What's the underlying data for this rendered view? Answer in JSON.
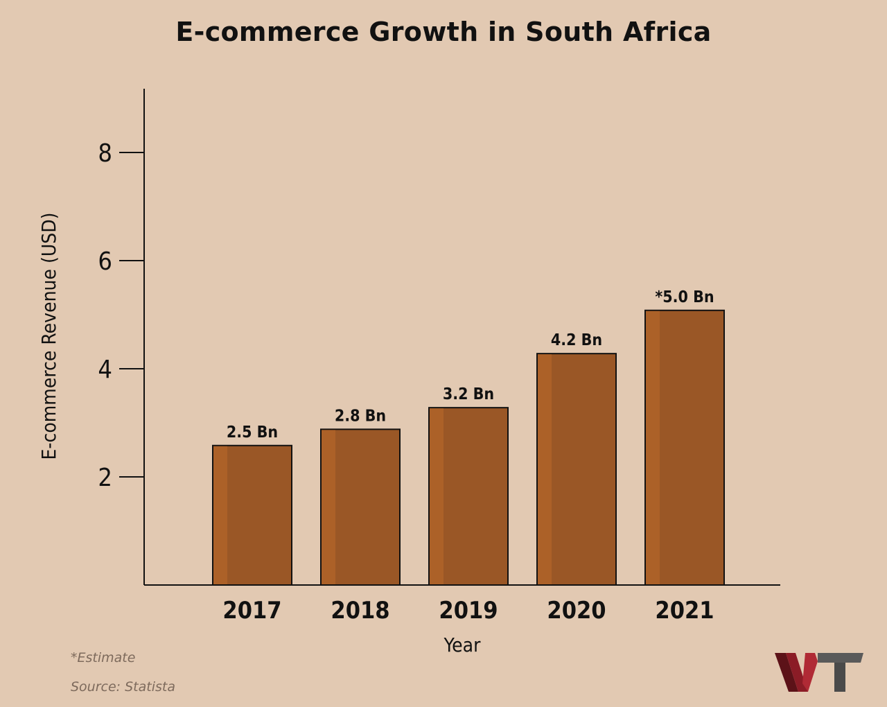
{
  "title": "E-commerce Growth in South Africa",
  "footnote": "*Estimate",
  "source": "Source: Statista",
  "colors": {
    "background": "#e2c9b2",
    "bar": "#9a5726",
    "bar_highlight": "#ac6128",
    "bar_outline": "#111111",
    "axis": "#111111",
    "logo_w": "#8b1c26",
    "logo_t": "#555555"
  },
  "chart_data": {
    "type": "bar",
    "title": "E-commerce Growth in South Africa",
    "xlabel": "Year",
    "ylabel": "E-commerce Revenue (USD)",
    "categories": [
      "2017",
      "2018",
      "2019",
      "2020",
      "2021"
    ],
    "values": [
      2.5,
      2.8,
      3.2,
      4.2,
      5.0
    ],
    "data_labels": [
      "2.5 Bn",
      "2.8 Bn",
      "3.2 Bn",
      "4.2 Bn",
      "*5.0 Bn"
    ],
    "ylim": [
      0,
      9
    ],
    "yticks": [
      2,
      4,
      6,
      8
    ],
    "grid": false,
    "legend": "none"
  }
}
